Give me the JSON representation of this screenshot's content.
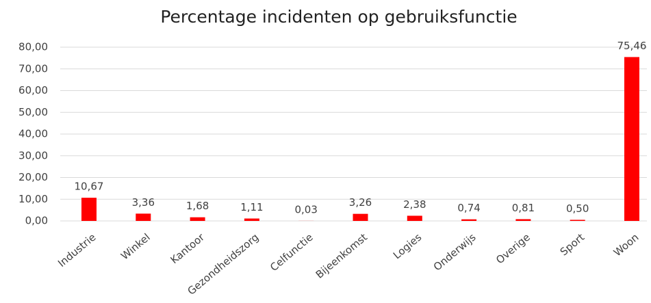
{
  "chart_data": {
    "type": "bar",
    "title": "Percentage incidenten op gebruiksfunctie",
    "categories": [
      "Industrie",
      "Winkel",
      "Kantoor",
      "Gezondheidszorg",
      "Celfunctie",
      "Bijeenkomst",
      "Logies",
      "Onderwijs",
      "Overige",
      "Sport",
      "Woon"
    ],
    "values": [
      10.67,
      3.36,
      1.68,
      1.11,
      0.03,
      3.26,
      2.38,
      0.74,
      0.81,
      0.5,
      75.46
    ],
    "value_labels": [
      "10,67",
      "3,36",
      "1,68",
      "1,11",
      "0,03",
      "3,26",
      "2,38",
      "0,74",
      "0,81",
      "0,50",
      "75,46"
    ],
    "color": "#ff0000",
    "ylim": [
      0,
      80
    ],
    "yticks": [
      {
        "value": 0,
        "label": "0,00"
      },
      {
        "value": 10,
        "label": "10,00"
      },
      {
        "value": 20,
        "label": "20,00"
      },
      {
        "value": 30,
        "label": "30,00"
      },
      {
        "value": 40,
        "label": "40,00"
      },
      {
        "value": 50,
        "label": "50,00"
      },
      {
        "value": 60,
        "label": "60,00"
      },
      {
        "value": 70,
        "label": "70,00"
      },
      {
        "value": 80,
        "label": "80,00"
      }
    ],
    "grid": true
  }
}
